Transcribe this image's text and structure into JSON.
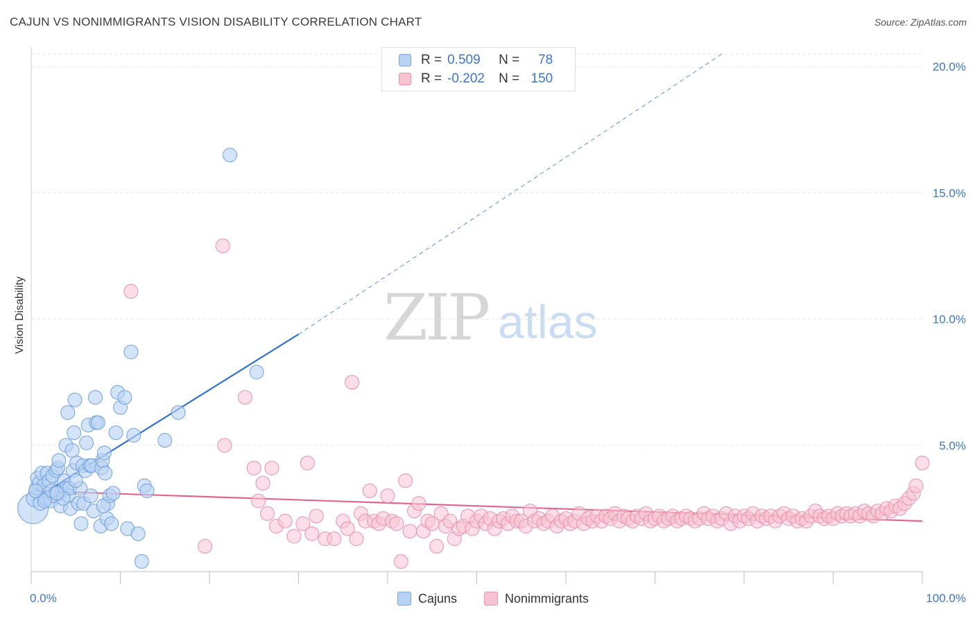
{
  "title": "CAJUN VS NONIMMIGRANTS VISION DISABILITY CORRELATION CHART",
  "source": "Source: ZipAtlas.com",
  "watermark": {
    "zip": "ZIP",
    "atlas": "atlas"
  },
  "legend_top": {
    "rows": [
      {
        "r_label": "R =",
        "r_value": "0.509",
        "n_label": "N =",
        "n_value": "78"
      },
      {
        "r_label": "R =",
        "r_value": "-0.202",
        "n_label": "N =",
        "n_value": "150"
      }
    ]
  },
  "legend_bottom": {
    "cajuns": "Cajuns",
    "nonimmigrants": "Nonimmigrants"
  },
  "colors": {
    "cajun_fill": "#b8d2f3",
    "cajun_stroke": "#6f9fdc",
    "cajun_line": "#2f72cc",
    "nonimm_fill": "#f7c3d3",
    "nonimm_stroke": "#e98fac",
    "nonimm_line": "#e0668f",
    "grid": "#e3e3e3",
    "tick_label": "#3a76c8"
  },
  "chart_data": {
    "type": "scatter",
    "title": "CAJUN VS NONIMMIGRANTS VISION DISABILITY CORRELATION CHART",
    "xlabel": "",
    "ylabel": "Vision Disability",
    "xlim": [
      0,
      100
    ],
    "ylim": [
      0,
      20.5
    ],
    "x_ticks": [
      0,
      10,
      20,
      30,
      40,
      50,
      60,
      70,
      80,
      90,
      100
    ],
    "x_tick_labels": [
      {
        "value": 0,
        "label": "0.0%"
      },
      {
        "value": 100,
        "label": "100.0%"
      }
    ],
    "y_ticks": [
      {
        "value": 5,
        "label": "5.0%"
      },
      {
        "value": 10,
        "label": "10.0%"
      },
      {
        "value": 15,
        "label": "15.0%"
      },
      {
        "value": 20,
        "label": "20.0%"
      }
    ],
    "legend": [
      "Cajuns",
      "Nonimmigrants"
    ],
    "series": [
      {
        "name": "Cajuns",
        "R": 0.509,
        "N": 78,
        "trend": {
          "x_solid": [
            0,
            30
          ],
          "y_solid": [
            2.8,
            9.4
          ],
          "x_dashed": [
            30,
            77.5
          ],
          "y_dashed": [
            9.4,
            20.5
          ]
        },
        "points": [
          [
            0.2,
            2.5,
            22
          ],
          [
            0.4,
            2.9,
            12
          ],
          [
            0.6,
            3.3,
            10
          ],
          [
            0.7,
            3.7,
            10
          ],
          [
            0.9,
            3.5,
            10
          ],
          [
            1.0,
            2.7,
            10
          ],
          [
            1.2,
            3.9,
            10
          ],
          [
            1.4,
            3.4,
            10
          ],
          [
            1.6,
            2.9,
            10
          ],
          [
            1.8,
            3.9,
            10
          ],
          [
            2.0,
            3.6,
            10
          ],
          [
            2.2,
            2.8,
            10
          ],
          [
            2.4,
            3.8,
            10
          ],
          [
            2.6,
            3.0,
            10
          ],
          [
            2.8,
            4.0,
            10
          ],
          [
            3.0,
            4.1,
            10
          ],
          [
            3.1,
            4.4,
            10
          ],
          [
            3.3,
            2.6,
            10
          ],
          [
            3.5,
            3.2,
            10
          ],
          [
            3.7,
            3.6,
            10
          ],
          [
            3.9,
            5.0,
            10
          ],
          [
            4.0,
            3.3,
            10
          ],
          [
            4.1,
            6.3,
            10
          ],
          [
            4.2,
            3.0,
            10
          ],
          [
            4.3,
            3.3,
            10
          ],
          [
            4.4,
            2.5,
            10
          ],
          [
            4.6,
            4.8,
            10
          ],
          [
            4.7,
            4.0,
            10
          ],
          [
            4.8,
            5.5,
            10
          ],
          [
            4.9,
            6.8,
            10
          ],
          [
            5.1,
            4.3,
            10
          ],
          [
            5.3,
            2.7,
            10
          ],
          [
            5.5,
            3.3,
            10
          ],
          [
            5.6,
            1.9,
            10
          ],
          [
            5.8,
            4.2,
            10
          ],
          [
            5.9,
            2.7,
            10
          ],
          [
            6.1,
            4.0,
            10
          ],
          [
            6.2,
            5.1,
            10
          ],
          [
            6.4,
            5.8,
            10
          ],
          [
            6.6,
            4.2,
            10
          ],
          [
            6.8,
            4.2,
            10
          ],
          [
            7.0,
            2.4,
            10
          ],
          [
            7.2,
            6.9,
            10
          ],
          [
            7.3,
            5.9,
            10
          ],
          [
            7.5,
            5.9,
            10
          ],
          [
            7.8,
            1.8,
            10
          ],
          [
            7.9,
            4.1,
            10
          ],
          [
            8.0,
            4.4,
            10
          ],
          [
            8.2,
            4.7,
            10
          ],
          [
            8.3,
            3.9,
            10
          ],
          [
            8.5,
            2.1,
            10
          ],
          [
            8.6,
            2.7,
            10
          ],
          [
            8.8,
            3.0,
            10
          ],
          [
            9.0,
            1.9,
            10
          ],
          [
            9.2,
            3.1,
            10
          ],
          [
            9.5,
            5.5,
            10
          ],
          [
            9.7,
            7.1,
            10
          ],
          [
            10.0,
            6.5,
            10
          ],
          [
            10.5,
            6.9,
            10
          ],
          [
            10.8,
            1.7,
            10
          ],
          [
            11.2,
            8.7,
            10
          ],
          [
            11.5,
            5.4,
            10
          ],
          [
            12.0,
            1.5,
            10
          ],
          [
            12.4,
            0.4,
            10
          ],
          [
            12.7,
            3.4,
            10
          ],
          [
            13.0,
            3.2,
            10
          ],
          [
            15.0,
            5.2,
            10
          ],
          [
            16.5,
            6.3,
            10
          ],
          [
            22.3,
            16.5,
            10
          ],
          [
            25.3,
            7.9,
            10
          ],
          [
            1.5,
            2.8,
            10
          ],
          [
            2.3,
            3.2,
            10
          ],
          [
            3.6,
            2.9,
            10
          ],
          [
            5.0,
            3.6,
            10
          ],
          [
            6.7,
            3.0,
            10
          ],
          [
            8.1,
            2.6,
            10
          ],
          [
            0.5,
            3.2,
            10
          ],
          [
            2.9,
            3.1,
            10
          ]
        ]
      },
      {
        "name": "Nonimmigrants",
        "R": -0.202,
        "N": 150,
        "trend": {
          "x": [
            0,
            100
          ],
          "y": [
            3.2,
            2.0
          ]
        },
        "points": [
          [
            11.2,
            11.1,
            10
          ],
          [
            21.5,
            12.9,
            10
          ],
          [
            19.5,
            1.0,
            10
          ],
          [
            21.7,
            5.0,
            10
          ],
          [
            24.0,
            6.9,
            10
          ],
          [
            25.0,
            4.1,
            10
          ],
          [
            25.5,
            2.8,
            10
          ],
          [
            26.0,
            3.5,
            10
          ],
          [
            26.5,
            2.3,
            10
          ],
          [
            27.0,
            4.1,
            10
          ],
          [
            27.5,
            1.8,
            10
          ],
          [
            28.5,
            2.0,
            10
          ],
          [
            29.5,
            1.4,
            10
          ],
          [
            30.5,
            1.9,
            10
          ],
          [
            31.0,
            4.3,
            10
          ],
          [
            31.5,
            1.5,
            10
          ],
          [
            32.0,
            2.2,
            10
          ],
          [
            33.0,
            1.3,
            10
          ],
          [
            34.0,
            1.3,
            10
          ],
          [
            35.0,
            2.0,
            10
          ],
          [
            35.5,
            1.7,
            10
          ],
          [
            36.0,
            7.5,
            10
          ],
          [
            36.5,
            1.3,
            10
          ],
          [
            37.0,
            2.3,
            10
          ],
          [
            37.5,
            2.0,
            10
          ],
          [
            38.0,
            3.2,
            10
          ],
          [
            38.5,
            2.0,
            10
          ],
          [
            39.0,
            1.9,
            10
          ],
          [
            39.5,
            2.1,
            10
          ],
          [
            40.0,
            3.0,
            10
          ],
          [
            40.5,
            2.0,
            10
          ],
          [
            41.0,
            1.9,
            10
          ],
          [
            41.5,
            0.4,
            10
          ],
          [
            42.0,
            3.6,
            10
          ],
          [
            42.5,
            1.6,
            10
          ],
          [
            43.0,
            2.4,
            10
          ],
          [
            43.5,
            2.7,
            10
          ],
          [
            44.0,
            1.6,
            10
          ],
          [
            44.5,
            2.0,
            10
          ],
          [
            45.0,
            1.9,
            10
          ],
          [
            45.5,
            1.0,
            10
          ],
          [
            46.0,
            2.3,
            10
          ],
          [
            46.5,
            1.8,
            10
          ],
          [
            47.0,
            2.0,
            10
          ],
          [
            47.5,
            1.3,
            10
          ],
          [
            48.0,
            1.7,
            10
          ],
          [
            48.5,
            1.8,
            10
          ],
          [
            49.0,
            2.2,
            10
          ],
          [
            49.5,
            1.7,
            10
          ],
          [
            50.0,
            2.0,
            10
          ],
          [
            50.5,
            2.2,
            10
          ],
          [
            51.0,
            1.9,
            10
          ],
          [
            51.5,
            2.1,
            10
          ],
          [
            52.0,
            1.7,
            10
          ],
          [
            52.5,
            2.0,
            10
          ],
          [
            53.0,
            2.1,
            10
          ],
          [
            53.5,
            1.9,
            10
          ],
          [
            54.0,
            2.2,
            10
          ],
          [
            54.5,
            2.0,
            10
          ],
          [
            55.0,
            2.0,
            10
          ],
          [
            55.5,
            1.8,
            10
          ],
          [
            56.0,
            2.4,
            10
          ],
          [
            56.5,
            2.0,
            10
          ],
          [
            57.0,
            2.1,
            10
          ],
          [
            57.5,
            1.9,
            10
          ],
          [
            58.0,
            2.0,
            10
          ],
          [
            58.5,
            2.2,
            10
          ],
          [
            59.0,
            1.8,
            10
          ],
          [
            59.5,
            2.0,
            10
          ],
          [
            60.0,
            2.1,
            10
          ],
          [
            60.5,
            1.9,
            10
          ],
          [
            61.0,
            2.0,
            10
          ],
          [
            61.5,
            2.3,
            10
          ],
          [
            62.0,
            1.9,
            10
          ],
          [
            62.5,
            2.1,
            10
          ],
          [
            63.0,
            2.0,
            10
          ],
          [
            63.5,
            2.2,
            10
          ],
          [
            64.0,
            2.0,
            10
          ],
          [
            64.5,
            2.2,
            10
          ],
          [
            65.0,
            2.1,
            10
          ],
          [
            65.5,
            2.3,
            10
          ],
          [
            66.0,
            2.0,
            10
          ],
          [
            66.5,
            2.2,
            10
          ],
          [
            67.0,
            2.1,
            10
          ],
          [
            67.5,
            2.0,
            10
          ],
          [
            68.0,
            2.2,
            10
          ],
          [
            68.5,
            2.1,
            10
          ],
          [
            69.0,
            2.3,
            10
          ],
          [
            69.5,
            2.0,
            10
          ],
          [
            70.0,
            2.1,
            10
          ],
          [
            70.5,
            2.2,
            10
          ],
          [
            71.0,
            2.0,
            10
          ],
          [
            71.5,
            2.1,
            10
          ],
          [
            72.0,
            2.2,
            10
          ],
          [
            72.5,
            2.0,
            10
          ],
          [
            73.0,
            2.1,
            10
          ],
          [
            73.5,
            2.2,
            10
          ],
          [
            74.0,
            2.1,
            10
          ],
          [
            74.5,
            2.0,
            10
          ],
          [
            75.0,
            2.1,
            10
          ],
          [
            75.5,
            2.3,
            10
          ],
          [
            76.0,
            2.1,
            10
          ],
          [
            76.5,
            2.2,
            10
          ],
          [
            77.0,
            2.0,
            10
          ],
          [
            77.5,
            2.1,
            10
          ],
          [
            78.0,
            2.3,
            10
          ],
          [
            78.5,
            1.9,
            10
          ],
          [
            79.0,
            2.2,
            10
          ],
          [
            79.5,
            2.0,
            10
          ],
          [
            80.0,
            2.2,
            10
          ],
          [
            80.5,
            2.1,
            10
          ],
          [
            81.0,
            2.3,
            10
          ],
          [
            81.5,
            2.0,
            10
          ],
          [
            82.0,
            2.2,
            10
          ],
          [
            82.5,
            2.1,
            10
          ],
          [
            83.0,
            2.2,
            10
          ],
          [
            83.5,
            2.0,
            10
          ],
          [
            84.0,
            2.2,
            10
          ],
          [
            84.5,
            2.3,
            10
          ],
          [
            85.0,
            2.1,
            10
          ],
          [
            85.5,
            2.2,
            10
          ],
          [
            86.0,
            2.0,
            10
          ],
          [
            86.5,
            2.1,
            10
          ],
          [
            87.0,
            2.0,
            10
          ],
          [
            87.5,
            2.2,
            10
          ],
          [
            88.0,
            2.4,
            10
          ],
          [
            88.5,
            2.2,
            10
          ],
          [
            89.0,
            2.1,
            10
          ],
          [
            89.5,
            2.2,
            10
          ],
          [
            90.0,
            2.1,
            10
          ],
          [
            90.5,
            2.3,
            10
          ],
          [
            91.0,
            2.2,
            10
          ],
          [
            91.5,
            2.3,
            10
          ],
          [
            92.0,
            2.2,
            10
          ],
          [
            92.5,
            2.3,
            10
          ],
          [
            93.0,
            2.2,
            10
          ],
          [
            93.5,
            2.4,
            10
          ],
          [
            94.0,
            2.3,
            10
          ],
          [
            94.5,
            2.2,
            10
          ],
          [
            95.0,
            2.4,
            10
          ],
          [
            95.5,
            2.3,
            10
          ],
          [
            96.0,
            2.5,
            10
          ],
          [
            96.5,
            2.4,
            10
          ],
          [
            97.0,
            2.6,
            10
          ],
          [
            97.5,
            2.5,
            10
          ],
          [
            98.0,
            2.7,
            10
          ],
          [
            98.5,
            2.9,
            10
          ],
          [
            99.0,
            3.1,
            10
          ],
          [
            99.3,
            3.4,
            10
          ],
          [
            100.0,
            4.3,
            10
          ]
        ]
      }
    ]
  }
}
